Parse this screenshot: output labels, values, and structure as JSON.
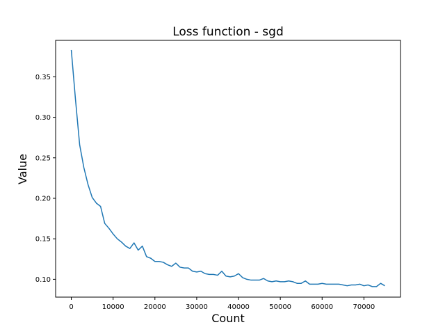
{
  "chart_data": {
    "type": "line",
    "title": "Loss function - sgd",
    "xlabel": "Count",
    "ylabel": "Value",
    "xlim": [
      -3750,
      78750
    ],
    "ylim": [
      0.078,
      0.395
    ],
    "grid": false,
    "xticks": [
      0,
      10000,
      20000,
      30000,
      40000,
      50000,
      60000,
      70000
    ],
    "xtick_labels": [
      "0",
      "10000",
      "20000",
      "30000",
      "40000",
      "50000",
      "60000",
      "70000"
    ],
    "yticks": [
      0.1,
      0.15,
      0.2,
      0.25,
      0.3,
      0.35
    ],
    "ytick_labels": [
      "0.10",
      "0.15",
      "0.20",
      "0.25",
      "0.30",
      "0.35"
    ],
    "colors": {
      "line": "#1f77b4"
    },
    "series": [
      {
        "x": [
          0,
          1000,
          2000,
          3000,
          4000,
          5000,
          6000,
          7000,
          8000,
          9000,
          10000,
          11000,
          12000,
          13000,
          14000,
          15000,
          16000,
          17000,
          18000,
          19000,
          20000,
          21000,
          22000,
          23000,
          24000,
          25000,
          26000,
          27000,
          28000,
          29000,
          30000,
          31000,
          32000,
          33000,
          34000,
          35000,
          36000,
          37000,
          38000,
          39000,
          40000,
          41000,
          42000,
          43000,
          44000,
          45000,
          46000,
          47000,
          48000,
          49000,
          50000,
          51000,
          52000,
          53000,
          54000,
          55000,
          56000,
          57000,
          58000,
          59000,
          60000,
          61000,
          62000,
          63000,
          64000,
          65000,
          66000,
          67000,
          68000,
          69000,
          70000,
          71000,
          72000,
          73000,
          74000,
          75000
        ],
        "y": [
          0.383,
          0.322,
          0.266,
          0.238,
          0.217,
          0.201,
          0.194,
          0.19,
          0.169,
          0.163,
          0.156,
          0.15,
          0.146,
          0.141,
          0.138,
          0.145,
          0.136,
          0.141,
          0.128,
          0.126,
          0.122,
          0.122,
          0.121,
          0.118,
          0.116,
          0.12,
          0.115,
          0.114,
          0.114,
          0.11,
          0.109,
          0.11,
          0.107,
          0.106,
          0.106,
          0.105,
          0.11,
          0.104,
          0.103,
          0.104,
          0.107,
          0.102,
          0.1,
          0.099,
          0.099,
          0.099,
          0.101,
          0.098,
          0.097,
          0.098,
          0.097,
          0.097,
          0.098,
          0.097,
          0.095,
          0.095,
          0.098,
          0.094,
          0.094,
          0.094,
          0.095,
          0.094,
          0.094,
          0.094,
          0.094,
          0.093,
          0.092,
          0.093,
          0.093,
          0.094,
          0.092,
          0.093,
          0.091,
          0.091,
          0.095,
          0.092
        ]
      }
    ]
  }
}
